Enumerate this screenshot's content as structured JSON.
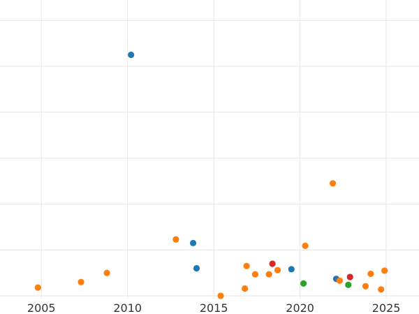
{
  "chart_data": {
    "type": "scatter",
    "title": "",
    "xlabel": "",
    "ylabel": "",
    "xlim": [
      2002.6,
      2026.9
    ],
    "ylim": [
      -0.2,
      6.2
    ],
    "grid": true,
    "legend": "none",
    "x_ticks": [
      2005,
      2010,
      2015,
      2020,
      2025
    ],
    "x_tick_labels": [
      "2005",
      "2010",
      "2015",
      "2020",
      "2025"
    ],
    "y_gridlines": [
      0,
      1,
      2,
      3,
      4,
      5,
      6
    ],
    "series": [
      {
        "color": "#1f77b4",
        "points": [
          {
            "x": 2010.2,
            "y": 5.25
          },
          {
            "x": 2013.8,
            "y": 1.15
          },
          {
            "x": 2014.0,
            "y": 0.6
          },
          {
            "x": 2019.5,
            "y": 0.58
          },
          {
            "x": 2022.1,
            "y": 0.37
          }
        ]
      },
      {
        "color": "#ff7f0e",
        "points": [
          {
            "x": 2004.8,
            "y": 0.18
          },
          {
            "x": 2007.3,
            "y": 0.3
          },
          {
            "x": 2008.8,
            "y": 0.5
          },
          {
            "x": 2012.8,
            "y": 1.23
          },
          {
            "x": 2015.4,
            "y": 0.0
          },
          {
            "x": 2016.8,
            "y": 0.16
          },
          {
            "x": 2016.9,
            "y": 0.65
          },
          {
            "x": 2017.4,
            "y": 0.47
          },
          {
            "x": 2018.2,
            "y": 0.47
          },
          {
            "x": 2018.7,
            "y": 0.56
          },
          {
            "x": 2020.3,
            "y": 1.09
          },
          {
            "x": 2021.9,
            "y": 2.45
          },
          {
            "x": 2022.3,
            "y": 0.33
          },
          {
            "x": 2023.8,
            "y": 0.21
          },
          {
            "x": 2024.1,
            "y": 0.48
          },
          {
            "x": 2024.7,
            "y": 0.14
          },
          {
            "x": 2024.9,
            "y": 0.55
          }
        ]
      },
      {
        "color": "#2ca02c",
        "points": [
          {
            "x": 2020.2,
            "y": 0.27
          },
          {
            "x": 2022.8,
            "y": 0.24
          }
        ]
      },
      {
        "color": "#d62728",
        "points": [
          {
            "x": 2018.4,
            "y": 0.7
          },
          {
            "x": 2022.9,
            "y": 0.41
          }
        ]
      }
    ]
  }
}
